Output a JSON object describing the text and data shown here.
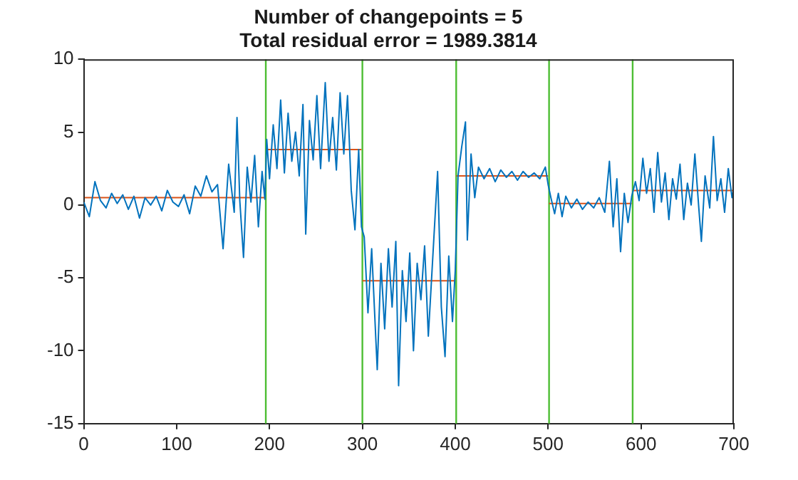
{
  "chart_data": {
    "type": "line",
    "title": "Number of changepoints = 5",
    "subtitle": "Total residual error = 1989.3814",
    "xlim": [
      0,
      700
    ],
    "xticks": [
      0,
      100,
      200,
      300,
      400,
      500,
      600,
      700
    ],
    "ylim": [
      -15,
      10
    ],
    "yticks": [
      -15,
      -10,
      -5,
      0,
      5,
      10
    ],
    "grid": false,
    "legend": false,
    "marker": "none",
    "line_style": "solid",
    "series": [
      {
        "color": "#0072bd",
        "x": [
          0,
          6,
          12,
          18,
          24,
          30,
          36,
          42,
          48,
          54,
          60,
          66,
          72,
          78,
          84,
          90,
          96,
          102,
          108,
          114,
          120,
          126,
          132,
          138,
          144,
          150,
          156,
          162,
          165,
          168,
          172,
          176,
          180,
          184,
          188,
          192,
          195,
          197,
          200,
          204,
          208,
          212,
          216,
          220,
          224,
          228,
          232,
          236,
          239,
          243,
          247,
          251,
          255,
          260,
          264,
          268,
          272,
          276,
          280,
          284,
          288,
          292,
          296,
          299,
          302,
          306,
          310,
          316,
          320,
          324,
          328,
          332,
          336,
          339,
          343,
          347,
          351,
          355,
          359,
          363,
          367,
          371,
          375,
          381,
          385,
          389,
          393,
          397,
          400,
          403,
          407,
          411,
          413,
          417,
          421,
          425,
          431,
          437,
          443,
          449,
          455,
          461,
          467,
          473,
          479,
          485,
          491,
          497,
          500,
          503,
          507,
          511,
          515,
          519,
          525,
          531,
          537,
          543,
          549,
          555,
          561,
          566,
          570,
          574,
          578,
          582,
          586,
          590,
          594,
          598,
          602,
          606,
          610,
          614,
          618,
          622,
          626,
          630,
          634,
          638,
          642,
          646,
          650,
          654,
          658,
          662,
          665,
          669,
          674,
          678,
          682,
          686,
          690,
          694,
          698,
          700
        ],
        "values": [
          0.2,
          -0.8,
          1.6,
          0.3,
          -0.2,
          0.8,
          0.1,
          0.7,
          -0.3,
          0.6,
          -0.9,
          0.5,
          0.0,
          0.6,
          -0.4,
          1.0,
          0.2,
          -0.1,
          0.7,
          -0.6,
          1.3,
          0.6,
          2.0,
          0.9,
          1.4,
          -3.0,
          2.8,
          -0.5,
          6.0,
          0.3,
          -3.6,
          2.6,
          0.2,
          3.4,
          -1.5,
          2.3,
          0.4,
          4.5,
          1.8,
          5.5,
          2.5,
          7.2,
          2.2,
          6.3,
          3.0,
          5.0,
          2.0,
          6.9,
          -2.0,
          5.8,
          3.1,
          7.5,
          2.5,
          8.4,
          3.0,
          6.0,
          2.4,
          7.7,
          3.5,
          7.5,
          1.0,
          -1.7,
          3.8,
          -1.5,
          -2.2,
          -7.4,
          -3.0,
          -11.3,
          -4.0,
          -8.5,
          -3.0,
          -7.0,
          -2.5,
          -12.4,
          -4.5,
          -8.0,
          -3.3,
          -10.0,
          -4.0,
          -6.5,
          -2.8,
          -9.0,
          -4.5,
          2.3,
          -7.0,
          -10.4,
          -3.5,
          -8.0,
          -4.5,
          2.0,
          4.0,
          5.7,
          -2.4,
          3.5,
          0.5,
          2.6,
          1.8,
          2.5,
          1.6,
          2.4,
          1.9,
          2.3,
          1.7,
          2.3,
          1.9,
          2.2,
          1.8,
          2.6,
          1.4,
          0.5,
          -0.6,
          0.8,
          -0.8,
          0.6,
          -0.2,
          0.4,
          -0.3,
          0.2,
          -0.2,
          0.5,
          -0.5,
          3.0,
          -1.5,
          1.8,
          -3.2,
          0.8,
          -1.2,
          0.6,
          1.6,
          0.3,
          3.2,
          0.8,
          2.5,
          -0.5,
          3.6,
          0.2,
          2.2,
          -1.0,
          1.8,
          0.4,
          2.8,
          -1.0,
          1.5,
          0.0,
          3.5,
          0.0,
          -2.5,
          2.0,
          -0.2,
          4.7,
          0.3,
          1.8,
          -0.5,
          2.5,
          0.5,
          1.2
        ]
      },
      {
        "color": "#d95319",
        "x": [
          1,
          195,
          195.5,
          196,
          299,
          299.5,
          300,
          400,
          400.5,
          401,
          500,
          500.5,
          501,
          590,
          590.5,
          591,
          700
        ],
        "values": [
          0.5,
          0.5,
          null,
          3.8,
          3.8,
          null,
          -5.2,
          -5.2,
          null,
          2.0,
          2.0,
          null,
          0.1,
          0.1,
          null,
          1.0,
          1.0
        ]
      }
    ],
    "ref_lines": [
      {
        "axis": "x",
        "value": 196,
        "color": "#4dbe33"
      },
      {
        "axis": "x",
        "value": 300,
        "color": "#4dbe33"
      },
      {
        "axis": "x",
        "value": 401,
        "color": "#4dbe33"
      },
      {
        "axis": "x",
        "value": 501,
        "color": "#4dbe33"
      },
      {
        "axis": "x",
        "value": 591,
        "color": "#4dbe33"
      }
    ]
  }
}
